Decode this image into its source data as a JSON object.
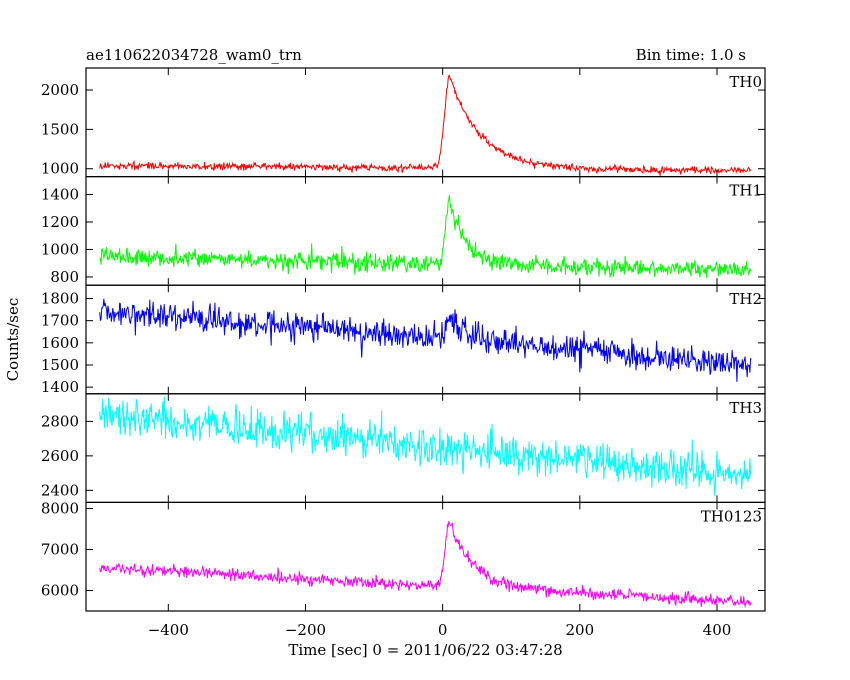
{
  "chart_data": {
    "type": "line",
    "title": "ae110622034728_wam0_trn",
    "bin_time": "Bin time: 1.0 s",
    "xlabel": "Time [sec] 0 = 2011/06/22 03:47:28",
    "ylabel": "Counts/sec",
    "xlim": [
      -520,
      470
    ],
    "x_ticks": [
      -400,
      -200,
      0,
      200,
      400
    ],
    "x_tick_labels": [
      "−400",
      "−200",
      "0",
      "200",
      "400"
    ],
    "data_range": [
      -500,
      450
    ],
    "peak_time": 10,
    "series": [
      {
        "name": "TH0",
        "color": "#ff0000",
        "ylim": [
          900,
          2280
        ],
        "yticks": [
          1000,
          1500,
          2000
        ],
        "baseline_start": 1040,
        "baseline_end": 975,
        "noise": 22,
        "peak": 1180,
        "rise": 7,
        "decay": 45
      },
      {
        "name": "TH1",
        "color": "#00ff00",
        "ylim": [
          740,
          1530
        ],
        "yticks": [
          800,
          1000,
          1200,
          1400
        ],
        "baseline_start": 950,
        "baseline_end": 850,
        "noise": 32,
        "peak": 480,
        "rise": 5,
        "decay": 22
      },
      {
        "name": "TH2",
        "color": "#0000ff",
        "ylim": [
          1370,
          1860
        ],
        "yticks": [
          1400,
          1500,
          1600,
          1700,
          1800
        ],
        "baseline_start": 1745,
        "baseline_end": 1500,
        "noise": 32,
        "peak": 90,
        "rise": 6,
        "decay": 30
      },
      {
        "name": "TH3",
        "color": "#00ffff",
        "ylim": [
          2330,
          2960
        ],
        "yticks": [
          2400,
          2600,
          2800
        ],
        "baseline_start": 2840,
        "baseline_end": 2480,
        "noise": 55,
        "peak": 0,
        "rise": 5,
        "decay": 30
      },
      {
        "name": "TH0123",
        "color": "#ff00ff",
        "ylim": [
          5500,
          8150
        ],
        "yticks": [
          6000,
          7000,
          8000
        ],
        "baseline_start": 6550,
        "baseline_end": 5720,
        "noise": 70,
        "peak": 1550,
        "rise": 6,
        "decay": 35
      }
    ],
    "grid": false,
    "legend": "none"
  }
}
